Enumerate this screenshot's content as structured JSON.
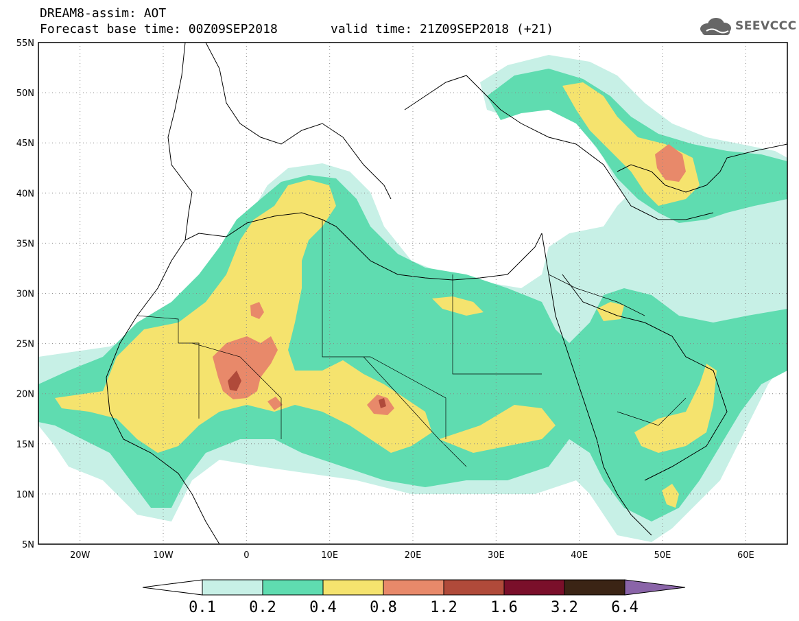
{
  "header": {
    "model_line": "DREAM8-assim: AOT",
    "base_time_line": "Forecast base time: 00Z09SEP2018",
    "valid_time_line": "valid time: 21Z09SEP2018 (+21)"
  },
  "logo": {
    "text": "SEEVCCC",
    "icon": "cloud-icon"
  },
  "axes": {
    "lat_labels": [
      "55N",
      "50N",
      "45N",
      "40N",
      "35N",
      "30N",
      "25N",
      "20N",
      "15N",
      "10N",
      "5N"
    ],
    "lon_labels": [
      "20W",
      "10W",
      "0",
      "10E",
      "20E",
      "30E",
      "40E",
      "50E",
      "60E"
    ],
    "lat_range": [
      5,
      55
    ],
    "lon_range": [
      -25,
      65
    ],
    "grid": "dotted"
  },
  "colorbar": {
    "levels": [
      "0.1",
      "0.2",
      "0.4",
      "0.8",
      "1.2",
      "1.6",
      "3.2",
      "6.4"
    ],
    "colors": [
      "#ffffff",
      "#c7f0e6",
      "#5fdcb0",
      "#f5e36e",
      "#e8896a",
      "#b04a3a",
      "#7a0f2a",
      "#3b2415",
      "#8a64a8"
    ]
  },
  "fill_colors": {
    "c01": "#c7f0e6",
    "c02": "#5fdcb0",
    "c04": "#f5e36e",
    "c08": "#e8896a",
    "c12": "#b04a3a"
  }
}
